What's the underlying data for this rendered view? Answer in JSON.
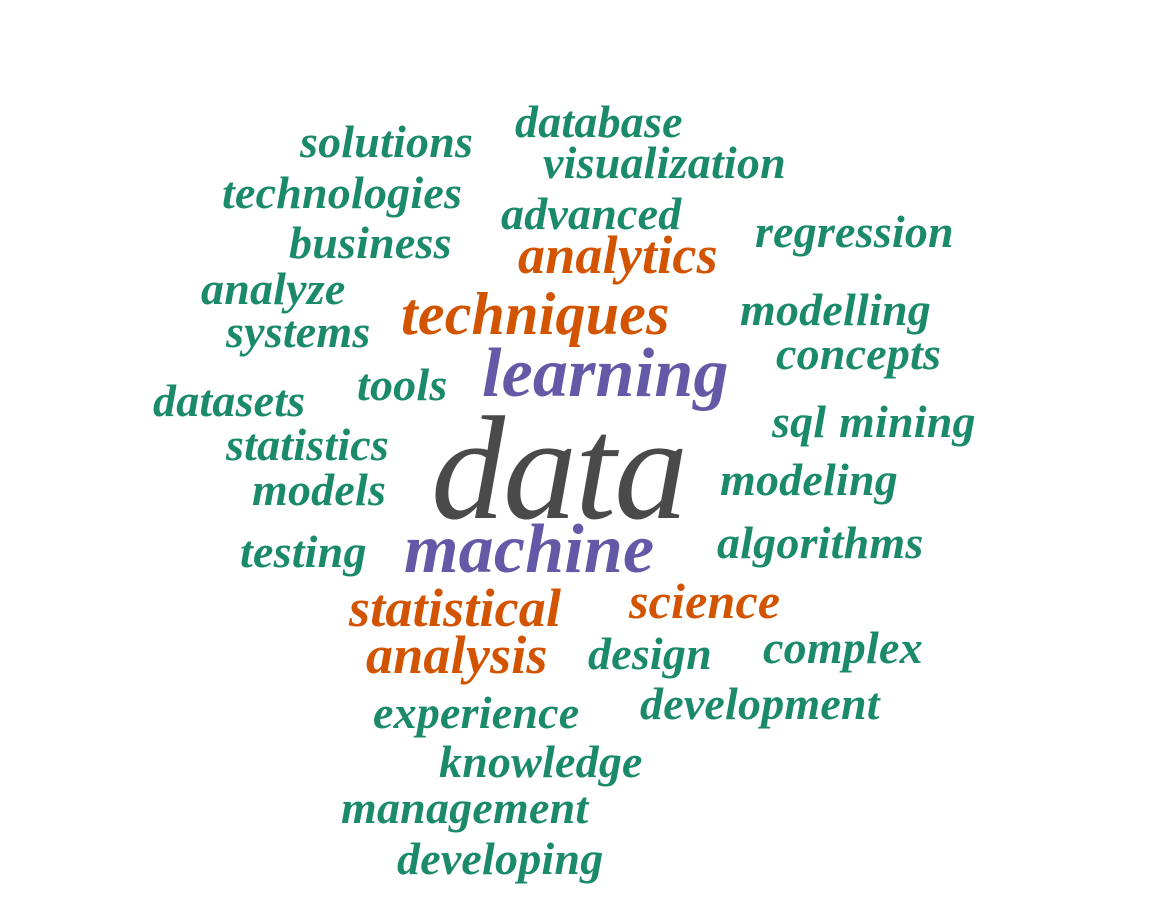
{
  "colors": {
    "green": "#1b8a6b",
    "orange": "#d35400",
    "purple": "#6459a6",
    "gray": "#4a4a4a",
    "background": "#ffffff"
  },
  "words": [
    {
      "text": "database",
      "tier": "green"
    },
    {
      "text": "solutions",
      "tier": "green"
    },
    {
      "text": "visualization",
      "tier": "green"
    },
    {
      "text": "technologies",
      "tier": "green"
    },
    {
      "text": "advanced",
      "tier": "green"
    },
    {
      "text": "regression",
      "tier": "green"
    },
    {
      "text": "business",
      "tier": "green"
    },
    {
      "text": "analytics",
      "tier": "orange"
    },
    {
      "text": "analyze",
      "tier": "green"
    },
    {
      "text": "techniques",
      "tier": "orange"
    },
    {
      "text": "modelling",
      "tier": "green"
    },
    {
      "text": "systems",
      "tier": "green"
    },
    {
      "text": "learning",
      "tier": "purple"
    },
    {
      "text": "concepts",
      "tier": "green"
    },
    {
      "text": "tools",
      "tier": "green"
    },
    {
      "text": "datasets",
      "tier": "green"
    },
    {
      "text": "sql",
      "tier": "green"
    },
    {
      "text": "mining",
      "tier": "green"
    },
    {
      "text": "statistics",
      "tier": "green"
    },
    {
      "text": "data",
      "tier": "gray"
    },
    {
      "text": "models",
      "tier": "green"
    },
    {
      "text": "modeling",
      "tier": "green"
    },
    {
      "text": "algorithms",
      "tier": "green"
    },
    {
      "text": "testing",
      "tier": "green"
    },
    {
      "text": "machine",
      "tier": "purple"
    },
    {
      "text": "statistical",
      "tier": "orange"
    },
    {
      "text": "science",
      "tier": "orange"
    },
    {
      "text": "analysis",
      "tier": "orange"
    },
    {
      "text": "design",
      "tier": "green"
    },
    {
      "text": "complex",
      "tier": "green"
    },
    {
      "text": "development",
      "tier": "green"
    },
    {
      "text": "experience",
      "tier": "green"
    },
    {
      "text": "knowledge",
      "tier": "green"
    },
    {
      "text": "management",
      "tier": "green"
    },
    {
      "text": "developing",
      "tier": "green"
    }
  ]
}
